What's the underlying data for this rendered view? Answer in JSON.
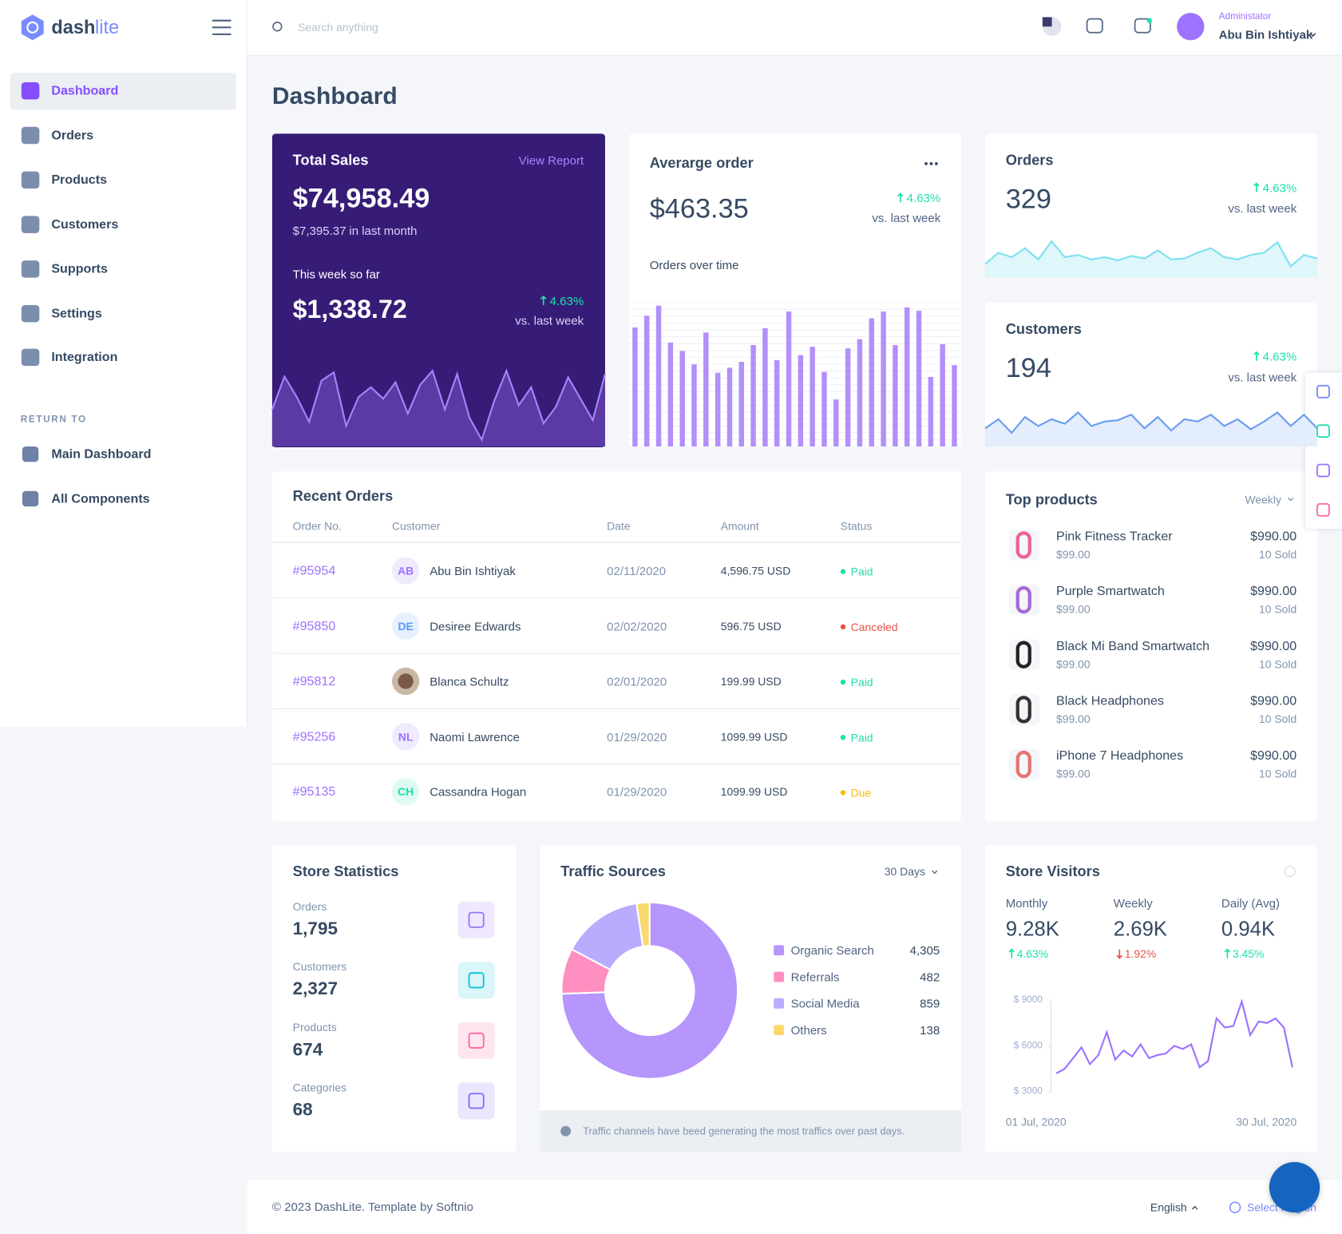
{
  "sidebar": {
    "brand": [
      "dash",
      "lite"
    ],
    "menu": [
      "Dashboard",
      "Orders",
      "Products",
      "Customers",
      "Supports",
      "Settings",
      "Integration"
    ],
    "section": "RETURN TO",
    "links": [
      "Main Dashboard",
      "All Components"
    ]
  },
  "header": {
    "search": "Search anything",
    "role": "Administator",
    "user": "Abu Bin Ishtiyak"
  },
  "title": "Dashboard",
  "total_sales": {
    "title": "Total Sales",
    "link": "View Report",
    "amount": "$74,958.49",
    "last_month": "$7,395.37",
    "last_month_text": "in last month",
    "week_label": "This week so far",
    "week_amount": "$1,338.72",
    "change": "4.63%",
    "compare": "vs. last week",
    "chart": {
      "type": "area",
      "color": "#a683ff",
      "fill": "#5b3aa3",
      "ylim": [
        0,
        100
      ],
      "values": [
        45,
        85,
        60,
        30,
        80,
        90,
        25,
        60,
        72,
        58,
        78,
        40,
        75,
        92,
        45,
        88,
        35,
        8,
        55,
        92,
        50,
        72,
        28,
        48,
        84,
        58,
        32,
        88
      ]
    }
  },
  "average_order": {
    "title": "Averarge order",
    "amount": "$463.35",
    "change": "4.63%",
    "compare": "vs. last week",
    "chart_title": "Orders over time",
    "chart": {
      "type": "bar",
      "color": "#b38ffa",
      "ylim": [
        0,
        180
      ],
      "values": [
        142,
        156,
        168,
        124,
        114,
        98,
        136,
        88,
        94,
        101,
        121,
        141,
        103,
        161,
        109,
        119,
        89,
        56,
        117,
        128,
        153,
        161,
        121,
        166,
        162,
        83,
        122,
        97
      ]
    }
  },
  "orders": {
    "title": "Orders",
    "value": "329",
    "change": "4.63%",
    "compare": "vs. last week",
    "chart": {
      "type": "area",
      "color": "#7de1f0",
      "fill": "#dff6fa",
      "ylim": [
        0,
        100
      ],
      "values": [
        30,
        55,
        45,
        65,
        40,
        80,
        45,
        50,
        40,
        45,
        38,
        48,
        42,
        60,
        40,
        42,
        55,
        65,
        45,
        40,
        50,
        55,
        78,
        25,
        50,
        42
      ]
    }
  },
  "customers": {
    "title": "Customers",
    "value": "194",
    "change": "4.63%",
    "compare": "vs. last week",
    "chart": {
      "type": "area",
      "color": "#6a9cf0",
      "fill": "#e3edfc",
      "ylim": [
        0,
        100
      ],
      "values": [
        40,
        60,
        30,
        65,
        45,
        60,
        50,
        75,
        45,
        55,
        58,
        70,
        40,
        65,
        35,
        60,
        55,
        70,
        45,
        60,
        38,
        55,
        75,
        45,
        70,
        40
      ]
    }
  },
  "recent_orders": {
    "title": "Recent Orders",
    "columns": [
      "Order No.",
      "Customer",
      "Date",
      "Amount",
      "Status"
    ],
    "rows": [
      {
        "order": "#95954",
        "initials": "AB",
        "avatar_color": "#9d72ff",
        "customer": "Abu Bin Ishtiyak",
        "date": "02/11/2020",
        "amount": "4,596.75 USD",
        "status": "Paid",
        "status_color": "#1ee0ac"
      },
      {
        "order": "#95850",
        "initials": "DE",
        "avatar_color": "#559bfb",
        "customer": "Desiree Edwards",
        "date": "02/02/2020",
        "amount": "596.75 USD",
        "status": "Canceled",
        "status_color": "#e85347"
      },
      {
        "order": "#95812",
        "customer": "Blanca Schultz",
        "date": "02/01/2020",
        "amount": "199.99 USD",
        "status": "Paid",
        "status_color": "#1ee0ac"
      },
      {
        "order": "#95256",
        "initials": "NL",
        "avatar_color": "#9d72ff",
        "customer": "Naomi Lawrence",
        "date": "01/29/2020",
        "amount": "1099.99 USD",
        "status": "Paid",
        "status_color": "#1ee0ac"
      },
      {
        "order": "#95135",
        "initials": "CH",
        "avatar_color": "#1ee0ac",
        "customer": "Cassandra Hogan",
        "date": "01/29/2020",
        "amount": "1099.99 USD",
        "status": "Due",
        "status_color": "#f4bd0e"
      }
    ]
  },
  "top_products": {
    "title": "Top products",
    "period": "Weekly",
    "items": [
      {
        "name": "Pink Fitness Tracker",
        "price": "$99.00",
        "total": "$990.00",
        "sold": "10 Sold"
      },
      {
        "name": "Purple Smartwatch",
        "price": "$99.00",
        "total": "$990.00",
        "sold": "10 Sold"
      },
      {
        "name": "Black Mi Band Smartwatch",
        "price": "$99.00",
        "total": "$990.00",
        "sold": "10 Sold"
      },
      {
        "name": "Black Headphones",
        "price": "$99.00",
        "total": "$990.00",
        "sold": "10 Sold"
      },
      {
        "name": "iPhone 7 Headphones",
        "price": "$99.00",
        "total": "$990.00",
        "sold": "10 Sold"
      }
    ]
  },
  "store_statistics": {
    "title": "Store Statistics",
    "items": [
      {
        "label": "Orders",
        "value": "1,795"
      },
      {
        "label": "Customers",
        "value": "2,327"
      },
      {
        "label": "Products",
        "value": "674"
      },
      {
        "label": "Categories",
        "value": "68"
      }
    ]
  },
  "traffic_sources": {
    "title": "Traffic Sources",
    "period": "30 Days",
    "note": "Traffic channels have beed generating the most traffics over past days.",
    "chart": {
      "type": "pie",
      "categories": [
        "Organic Search",
        "Referrals",
        "Social Media",
        "Others"
      ],
      "values": [
        4305,
        482,
        859,
        138
      ],
      "value_labels": [
        "4,305",
        "482",
        "859",
        "138"
      ],
      "colors": [
        "#b695fc",
        "#ff8fc0",
        "#b8acff",
        "#f9d96e"
      ]
    }
  },
  "store_visitors": {
    "title": "Store Visitors",
    "stats": [
      {
        "label": "Monthly",
        "value": "9.28K",
        "change": "4.63%",
        "trend": "up"
      },
      {
        "label": "Weekly",
        "value": "2.69K",
        "change": "1.92%",
        "trend": "down"
      },
      {
        "label": "Daily (Avg)",
        "value": "0.94K",
        "change": "3.45%",
        "trend": "up"
      }
    ],
    "chart": {
      "type": "line",
      "color": "#9d72ff",
      "x_labels": [
        "01 Jul, 2020",
        "30 Jul, 2020"
      ],
      "ylim": [
        3000,
        9000
      ],
      "yticks": [
        {
          "value": 9000,
          "label": "$ 9000"
        },
        {
          "value": 6000,
          "label": "$ 6000"
        },
        {
          "value": 3000,
          "label": "$ 3000"
        }
      ],
      "values": [
        4200,
        4500,
        5200,
        5900,
        4800,
        5400,
        6900,
        5100,
        5700,
        5300,
        6100,
        5200,
        5400,
        5500,
        6000,
        5800,
        6100,
        4600,
        5000,
        7800,
        7200,
        7300,
        8900,
        6700,
        7600,
        7500,
        7800,
        7200,
        4600
      ]
    }
  },
  "footer": {
    "copyright": "© 2023 DashLite. Template by Softnio",
    "language": "English",
    "region": "Select Region"
  }
}
